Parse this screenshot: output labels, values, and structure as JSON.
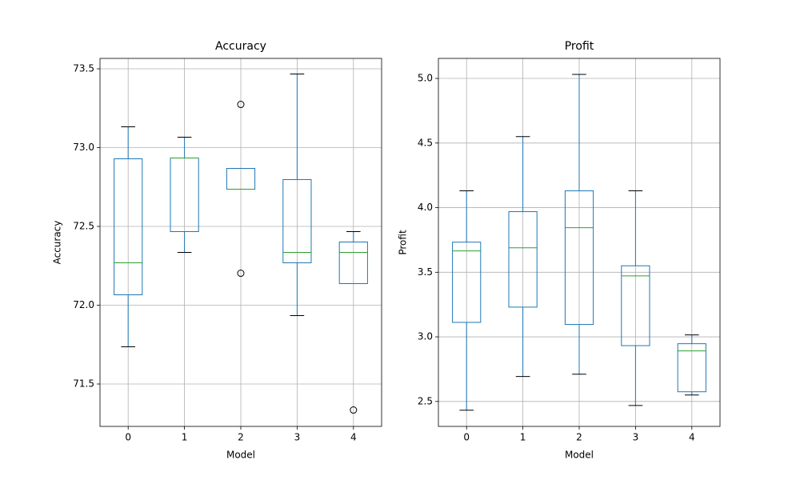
{
  "chart_data": [
    {
      "type": "box",
      "title": "Accuracy",
      "x_label": "Model",
      "y_label": "Accuracy",
      "categories": [
        "0",
        "1",
        "2",
        "3",
        "4"
      ],
      "boxes": [
        {
          "whislo": 71.736,
          "q1": 72.066,
          "med": 72.269,
          "q3": 72.929,
          "whishi": 73.132,
          "fliers": []
        },
        {
          "whislo": 72.335,
          "q1": 72.467,
          "med": 72.934,
          "q3": 72.934,
          "whishi": 73.066,
          "fliers": []
        },
        {
          "whislo": 72.736,
          "q1": 72.736,
          "med": 72.736,
          "q3": 72.868,
          "whishi": 72.868,
          "fliers": [
            73.274,
            72.203
          ]
        },
        {
          "whislo": 71.934,
          "q1": 72.269,
          "med": 72.335,
          "q3": 72.797,
          "whishi": 73.467,
          "fliers": []
        },
        {
          "whislo": 72.137,
          "q1": 72.137,
          "med": 72.335,
          "q3": 72.401,
          "whishi": 72.467,
          "fliers": [
            71.335
          ]
        }
      ],
      "color": "#1f77b4",
      "median_color": "#2ca02c",
      "cap_color": "#000000",
      "ylim": [
        71.231,
        73.566
      ],
      "yticks": [
        {
          "value": 71.5,
          "label": "71.5"
        },
        {
          "value": 72.0,
          "label": "72.0"
        },
        {
          "value": 72.5,
          "label": "72.5"
        },
        {
          "value": 73.0,
          "label": "73.0"
        },
        {
          "value": 73.5,
          "label": "73.5"
        }
      ],
      "grid": true
    },
    {
      "type": "box",
      "title": "Profit",
      "x_label": "Model",
      "y_label": "Profit",
      "categories": [
        "0",
        "1",
        "2",
        "3",
        "4"
      ],
      "boxes": [
        {
          "whislo": 2.432,
          "q1": 3.112,
          "med": 3.665,
          "q3": 3.733,
          "whishi": 4.13,
          "fliers": []
        },
        {
          "whislo": 2.693,
          "q1": 3.23,
          "med": 3.689,
          "q3": 3.969,
          "whishi": 4.55,
          "fliers": []
        },
        {
          "whislo": 2.711,
          "q1": 3.096,
          "med": 3.845,
          "q3": 4.13,
          "whishi": 5.031,
          "fliers": []
        },
        {
          "whislo": 2.469,
          "q1": 2.932,
          "med": 3.472,
          "q3": 3.55,
          "whishi": 4.13,
          "fliers": []
        },
        {
          "whislo": 2.55,
          "q1": 2.575,
          "med": 2.891,
          "q3": 2.947,
          "whishi": 3.015,
          "fliers": []
        }
      ],
      "color": "#1f77b4",
      "median_color": "#2ca02c",
      "cap_color": "#000000",
      "ylim": [
        2.307,
        5.155
      ],
      "yticks": [
        2.5,
        {
          "value": 3.0,
          "label": "3.0"
        },
        3.5,
        {
          "value": 4.0,
          "label": "4.0"
        },
        4.5,
        {
          "value": 5.0,
          "label": "5.0"
        }
      ],
      "grid": true
    }
  ]
}
